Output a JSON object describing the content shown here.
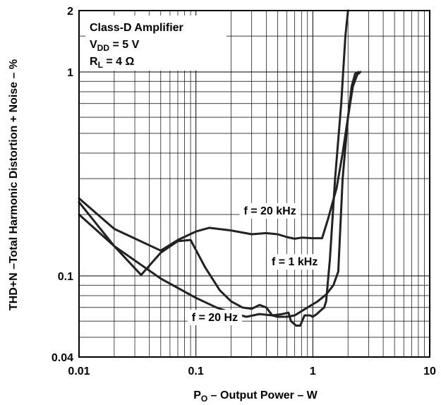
{
  "chart_data": {
    "type": "line",
    "title": "",
    "xlabel": {
      "main": "P",
      "sub": "O",
      "rest": " – Output Power – W"
    },
    "ylabel": "THD+N –Total Harmonic Distortion + Noise – %",
    "x_scale": "log",
    "y_scale": "log",
    "xlim": [
      0.01,
      10
    ],
    "ylim": [
      0.04,
      2
    ],
    "grid": true,
    "x_ticks": [
      {
        "value": 0.01,
        "label": "0.01"
      },
      {
        "value": 0.1,
        "label": "0.1"
      },
      {
        "value": 1,
        "label": "1"
      },
      {
        "value": 10,
        "label": "10"
      }
    ],
    "y_ticks": [
      {
        "value": 0.04,
        "label": "0.04"
      },
      {
        "value": 0.1,
        "label": "0.1"
      },
      {
        "value": 1,
        "label": "1"
      },
      {
        "value": 2,
        "label": "2"
      }
    ],
    "conditions": [
      {
        "main": "Class-D Amplifier",
        "sub": "",
        "rest": ""
      },
      {
        "main": "V",
        "sub": "DD",
        "rest": " = 5 V"
      },
      {
        "main": "R",
        "sub": "L",
        "rest": " = 4 Ω"
      }
    ],
    "series": [
      {
        "label": "f = 20 Hz",
        "label_x": 0.145,
        "label_y": 0.063,
        "points": [
          [
            0.01,
            0.2
          ],
          [
            0.02,
            0.14
          ],
          [
            0.05,
            0.097
          ],
          [
            0.1,
            0.078
          ],
          [
            0.15,
            0.07
          ],
          [
            0.2,
            0.066
          ],
          [
            0.27,
            0.063
          ],
          [
            0.35,
            0.065
          ],
          [
            0.45,
            0.064
          ],
          [
            0.55,
            0.065
          ],
          [
            0.62,
            0.066
          ],
          [
            0.65,
            0.06
          ],
          [
            0.72,
            0.057
          ],
          [
            0.78,
            0.057
          ],
          [
            0.85,
            0.064
          ],
          [
            0.95,
            0.064
          ],
          [
            1.0,
            0.063
          ],
          [
            1.08,
            0.065
          ],
          [
            1.18,
            0.068
          ],
          [
            1.25,
            0.07
          ],
          [
            1.3,
            0.075
          ],
          [
            1.4,
            0.12
          ],
          [
            1.55,
            0.3
          ],
          [
            1.75,
            0.7
          ],
          [
            1.9,
            1.5
          ],
          [
            2.0,
            2.0
          ]
        ]
      },
      {
        "label": "f = 1 kHz",
        "label_x": 0.7,
        "label_y": 0.118,
        "points": [
          [
            0.01,
            0.23
          ],
          [
            0.02,
            0.14
          ],
          [
            0.034,
            0.101
          ],
          [
            0.05,
            0.13
          ],
          [
            0.07,
            0.148
          ],
          [
            0.09,
            0.15
          ],
          [
            0.12,
            0.11
          ],
          [
            0.16,
            0.085
          ],
          [
            0.2,
            0.075
          ],
          [
            0.25,
            0.07
          ],
          [
            0.3,
            0.069
          ],
          [
            0.35,
            0.072
          ],
          [
            0.4,
            0.07
          ],
          [
            0.45,
            0.064
          ],
          [
            0.5,
            0.063
          ],
          [
            0.6,
            0.063
          ],
          [
            0.7,
            0.064
          ],
          [
            0.9,
            0.07
          ],
          [
            1.1,
            0.075
          ],
          [
            1.3,
            0.081
          ],
          [
            1.5,
            0.09
          ],
          [
            1.65,
            0.105
          ],
          [
            1.8,
            0.3
          ],
          [
            2.0,
            0.6
          ],
          [
            2.2,
            0.85
          ],
          [
            2.4,
            0.97
          ],
          [
            2.55,
            1.0
          ]
        ]
      },
      {
        "label": "f = 20 kHz",
        "label_x": 0.43,
        "label_y": 0.21,
        "points": [
          [
            0.01,
            0.24
          ],
          [
            0.02,
            0.17
          ],
          [
            0.05,
            0.133
          ],
          [
            0.07,
            0.15
          ],
          [
            0.1,
            0.165
          ],
          [
            0.13,
            0.172
          ],
          [
            0.2,
            0.167
          ],
          [
            0.3,
            0.16
          ],
          [
            0.4,
            0.162
          ],
          [
            0.5,
            0.16
          ],
          [
            0.6,
            0.155
          ],
          [
            0.7,
            0.152
          ],
          [
            0.8,
            0.154
          ],
          [
            1.0,
            0.153
          ],
          [
            1.2,
            0.153
          ],
          [
            1.35,
            0.19
          ],
          [
            1.6,
            0.27
          ],
          [
            1.8,
            0.4
          ],
          [
            2.0,
            0.6
          ],
          [
            2.15,
            0.85
          ],
          [
            2.3,
            0.98
          ],
          [
            2.45,
            1.0
          ]
        ]
      }
    ]
  }
}
